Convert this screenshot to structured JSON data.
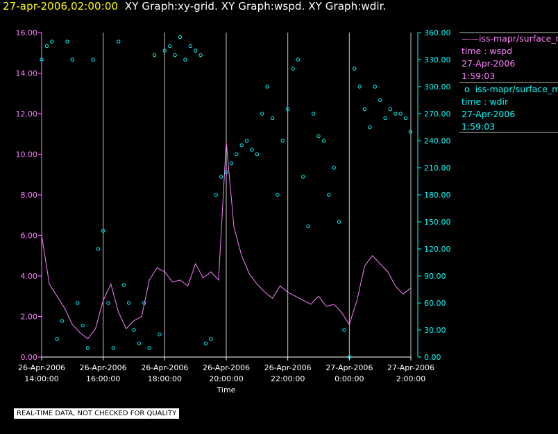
{
  "header": {
    "timestamp": "27-apr-2006,02:00:00",
    "title": "XY Graph:xy-grid.  XY Graph:wspd.  XY Graph:wdir."
  },
  "legend": {
    "wspd": {
      "source": "iss-mapr/surface_m",
      "var": "time : wspd",
      "date": "27-Apr-2006",
      "time": "1:59:03"
    },
    "wdir": {
      "source": "iss-mapr/surface_m",
      "var": "time : wdir",
      "date": "27-Apr-2006",
      "time": "1:59:03"
    }
  },
  "notice": "REAL-TIME DATA, NOT CHECKED FOR QUALITY",
  "colors": {
    "wspd": "#ff80ff",
    "wdir": "#00ffff",
    "grid": "#c8c8c8",
    "title_ts": "#ffff00"
  },
  "chart_data": {
    "type": "line",
    "xlabel": "Time",
    "x_range": [
      "2006-04-26 14:00",
      "2006-04-27 02:00"
    ],
    "x_ticks": [
      {
        "date": "26-Apr-2006",
        "time": "14:00:00"
      },
      {
        "date": "26-Apr-2006",
        "time": "16:00:00"
      },
      {
        "date": "26-Apr-2006",
        "time": "18:00:00"
      },
      {
        "date": "26-Apr-2006",
        "time": "20:00:00"
      },
      {
        "date": "26-Apr-2006",
        "time": "22:00:00"
      },
      {
        "date": "27-Apr-2006",
        "time": "0:00:00"
      },
      {
        "date": "27-Apr-2006",
        "time": "2:00:00"
      }
    ],
    "y_left": {
      "range": [
        0,
        16
      ],
      "ticks": [
        "0.00",
        "2.00",
        "4.00",
        "6.00",
        "8.00",
        "10.00",
        "12.00",
        "14.00",
        "16.00"
      ]
    },
    "y_right": {
      "range": [
        0,
        360
      ],
      "ticks": [
        "0.00",
        "30.00",
        "60.00",
        "90.00",
        "120.00",
        "150.00",
        "180.00",
        "210.00",
        "240.00",
        "270.00",
        "300.00",
        "330.00",
        "360.00"
      ]
    },
    "grid_times": [
      "2006-04-26 16:00",
      "2006-04-26 18:00",
      "2006-04-26 20:00",
      "2006-04-26 22:00",
      "2006-04-27 00:00",
      "2006-04-27 02:00"
    ],
    "series": [
      {
        "name": "iss-mapr/surface_m time : wspd",
        "axis": "left",
        "style": "line",
        "x": [
          "2006-04-26 14:00",
          "2006-04-26 14:15",
          "2006-04-26 14:30",
          "2006-04-26 14:45",
          "2006-04-26 15:00",
          "2006-04-26 15:15",
          "2006-04-26 15:30",
          "2006-04-26 15:45",
          "2006-04-26 16:00",
          "2006-04-26 16:15",
          "2006-04-26 16:30",
          "2006-04-26 16:45",
          "2006-04-26 17:00",
          "2006-04-26 17:15",
          "2006-04-26 17:30",
          "2006-04-26 17:45",
          "2006-04-26 18:00",
          "2006-04-26 18:15",
          "2006-04-26 18:30",
          "2006-04-26 18:45",
          "2006-04-26 19:00",
          "2006-04-26 19:15",
          "2006-04-26 19:30",
          "2006-04-26 19:45",
          "2006-04-26 20:00",
          "2006-04-26 20:15",
          "2006-04-26 20:30",
          "2006-04-26 20:45",
          "2006-04-26 21:00",
          "2006-04-26 21:15",
          "2006-04-26 21:30",
          "2006-04-26 21:45",
          "2006-04-26 22:00",
          "2006-04-26 22:15",
          "2006-04-26 22:30",
          "2006-04-26 22:45",
          "2006-04-26 23:00",
          "2006-04-26 23:15",
          "2006-04-26 23:30",
          "2006-04-26 23:45",
          "2006-04-27 00:00",
          "2006-04-27 00:15",
          "2006-04-27 00:30",
          "2006-04-27 00:45",
          "2006-04-27 01:00",
          "2006-04-27 01:15",
          "2006-04-27 01:30",
          "2006-04-27 01:45",
          "2006-04-27 01:59"
        ],
        "values": [
          6.0,
          3.6,
          3.0,
          2.4,
          1.6,
          1.2,
          0.9,
          1.4,
          2.8,
          3.6,
          2.2,
          1.4,
          1.8,
          2.0,
          3.8,
          4.4,
          4.2,
          3.7,
          3.8,
          3.5,
          4.6,
          3.9,
          4.2,
          3.8,
          10.6,
          6.4,
          5.0,
          4.1,
          3.6,
          3.2,
          2.9,
          3.5,
          3.2,
          3.0,
          2.8,
          2.6,
          3.0,
          2.5,
          2.6,
          2.2,
          1.6,
          2.8,
          4.5,
          5.0,
          4.6,
          4.2,
          3.5,
          3.1,
          3.4
        ]
      },
      {
        "name": "iss-mapr/surface_m time : wdir",
        "axis": "right",
        "style": "circles",
        "x": [
          "2006-04-26 14:00",
          "2006-04-26 14:10",
          "2006-04-26 14:20",
          "2006-04-26 14:30",
          "2006-04-26 14:40",
          "2006-04-26 14:50",
          "2006-04-26 15:00",
          "2006-04-26 15:10",
          "2006-04-26 15:20",
          "2006-04-26 15:30",
          "2006-04-26 15:40",
          "2006-04-26 15:50",
          "2006-04-26 16:00",
          "2006-04-26 16:10",
          "2006-04-26 16:20",
          "2006-04-26 16:30",
          "2006-04-26 16:40",
          "2006-04-26 16:50",
          "2006-04-26 17:00",
          "2006-04-26 17:10",
          "2006-04-26 17:20",
          "2006-04-26 17:30",
          "2006-04-26 17:40",
          "2006-04-26 17:50",
          "2006-04-26 18:00",
          "2006-04-26 18:10",
          "2006-04-26 18:20",
          "2006-04-26 18:30",
          "2006-04-26 18:40",
          "2006-04-26 18:50",
          "2006-04-26 19:00",
          "2006-04-26 19:10",
          "2006-04-26 19:20",
          "2006-04-26 19:30",
          "2006-04-26 19:40",
          "2006-04-26 19:50",
          "2006-04-26 20:00",
          "2006-04-26 20:10",
          "2006-04-26 20:20",
          "2006-04-26 20:30",
          "2006-04-26 20:40",
          "2006-04-26 20:50",
          "2006-04-26 21:00",
          "2006-04-26 21:10",
          "2006-04-26 21:20",
          "2006-04-26 21:30",
          "2006-04-26 21:40",
          "2006-04-26 21:50",
          "2006-04-26 22:00",
          "2006-04-26 22:10",
          "2006-04-26 22:20",
          "2006-04-26 22:30",
          "2006-04-26 22:40",
          "2006-04-26 22:50",
          "2006-04-26 23:00",
          "2006-04-26 23:10",
          "2006-04-26 23:20",
          "2006-04-26 23:30",
          "2006-04-26 23:40",
          "2006-04-26 23:50",
          "2006-04-27 00:00",
          "2006-04-27 00:10",
          "2006-04-27 00:20",
          "2006-04-27 00:30",
          "2006-04-27 00:40",
          "2006-04-27 00:50",
          "2006-04-27 01:00",
          "2006-04-27 01:10",
          "2006-04-27 01:20",
          "2006-04-27 01:30",
          "2006-04-27 01:40",
          "2006-04-27 01:50",
          "2006-04-27 01:59"
        ],
        "values": [
          330,
          345,
          350,
          20,
          40,
          350,
          330,
          60,
          35,
          10,
          330,
          120,
          140,
          60,
          10,
          350,
          80,
          60,
          30,
          15,
          60,
          10,
          335,
          25,
          340,
          345,
          335,
          355,
          330,
          345,
          340,
          335,
          15,
          20,
          180,
          200,
          205,
          215,
          225,
          235,
          240,
          230,
          225,
          270,
          300,
          265,
          180,
          240,
          275,
          320,
          330,
          200,
          145,
          270,
          245,
          240,
          180,
          210,
          150,
          30,
          0,
          320,
          300,
          275,
          255,
          300,
          285,
          265,
          275,
          270,
          270,
          265,
          250
        ]
      }
    ]
  }
}
